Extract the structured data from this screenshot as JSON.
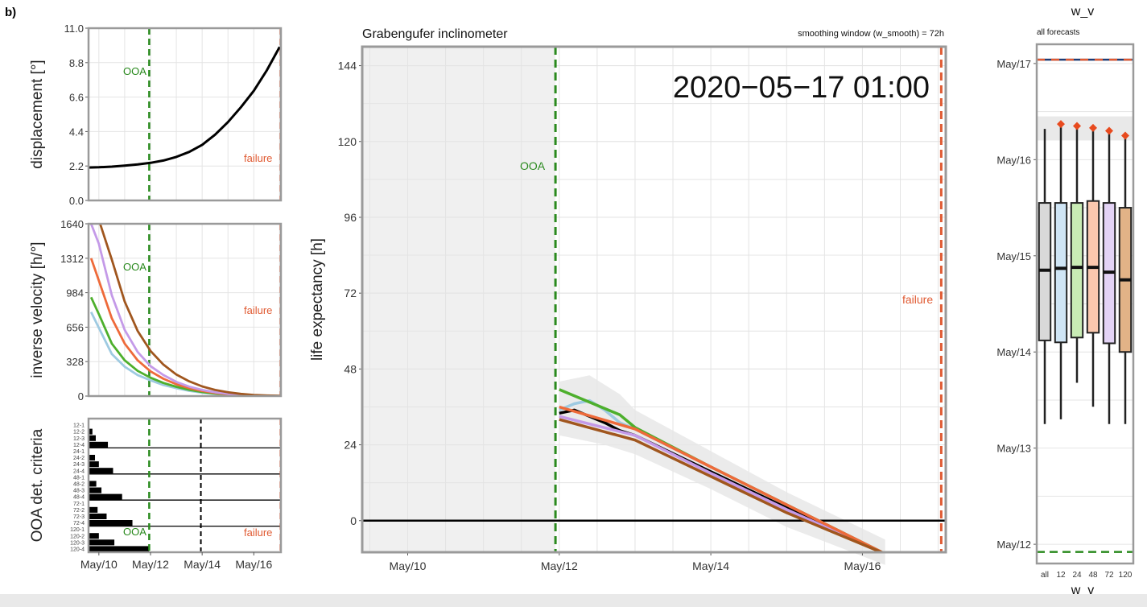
{
  "panel_label": "b)",
  "chart_data": [
    {
      "id": "displacement",
      "type": "line",
      "ylabel": "displacement [°]",
      "ylim": [
        0,
        11
      ],
      "yticks": [
        "0.0",
        "2.2",
        "4.4",
        "6.6",
        "8.8",
        "11.0"
      ],
      "x_unit": "day of May 2020",
      "xlim": [
        9.6,
        17.05
      ],
      "grid": true,
      "annotations": {
        "ooa": "OOA",
        "failure": "failure"
      },
      "vlines": {
        "ooa": 11.95,
        "failure": 17.04
      },
      "series": [
        {
          "color": "#000000",
          "x": [
            9.6,
            10.0,
            10.5,
            11.0,
            11.5,
            12.0,
            12.5,
            13.0,
            13.5,
            14.0,
            14.5,
            15.0,
            15.5,
            16.0,
            16.5,
            17.0
          ],
          "y": [
            2.1,
            2.12,
            2.16,
            2.22,
            2.3,
            2.4,
            2.55,
            2.78,
            3.1,
            3.55,
            4.2,
            5.0,
            5.95,
            7.0,
            8.3,
            9.8
          ]
        }
      ]
    },
    {
      "id": "inverse-velocity",
      "type": "line",
      "ylabel": "inverse velocity [h/°]",
      "ylim": [
        0,
        1640
      ],
      "yticks": [
        "0",
        "328",
        "656",
        "984",
        "1312",
        "1640"
      ],
      "xlim": [
        9.6,
        17.05
      ],
      "grid": true,
      "annotations": {
        "ooa": "OOA",
        "failure": "failure"
      },
      "vlines": {
        "ooa": 11.95,
        "failure": 17.04
      },
      "series": [
        {
          "color": "#9ecae1",
          "x": [
            9.7,
            10.0,
            10.5,
            11.0,
            11.5,
            12.0,
            12.5,
            13.0,
            13.5,
            14.0,
            14.5,
            15.0,
            15.5,
            16.0,
            16.5,
            17.0
          ],
          "y": [
            800,
            650,
            400,
            280,
            200,
            150,
            105,
            75,
            50,
            32,
            20,
            12,
            7,
            4,
            2,
            1
          ]
        },
        {
          "color": "#4daf2c",
          "x": [
            9.7,
            10.0,
            10.5,
            11.0,
            11.5,
            12.0,
            12.5,
            13.0,
            13.5,
            14.0,
            14.5,
            15.0,
            15.5,
            16.0,
            16.5,
            17.0
          ],
          "y": [
            940,
            780,
            500,
            340,
            240,
            175,
            125,
            88,
            60,
            38,
            24,
            14,
            8,
            4,
            2,
            1
          ]
        },
        {
          "color": "#ee6a3a",
          "x": [
            9.7,
            10.0,
            10.5,
            11.0,
            11.5,
            12.0,
            12.5,
            13.0,
            13.5,
            14.0,
            14.5,
            15.0,
            15.5,
            16.0,
            16.5,
            17.0
          ],
          "y": [
            1312,
            1100,
            740,
            500,
            340,
            235,
            165,
            112,
            75,
            48,
            30,
            18,
            10,
            5,
            2,
            1
          ]
        },
        {
          "color": "#c49ae8",
          "x": [
            9.7,
            10.0,
            10.5,
            11.0,
            11.5,
            12.0,
            12.5,
            13.0,
            13.5,
            14.0,
            14.5,
            15.0,
            15.5,
            16.0,
            16.5,
            17.0
          ],
          "y": [
            1640,
            1450,
            960,
            630,
            420,
            285,
            200,
            135,
            90,
            58,
            36,
            22,
            12,
            6,
            3,
            1
          ]
        },
        {
          "color": "#a0561e",
          "x": [
            10.05,
            10.5,
            11.0,
            11.5,
            12.0,
            12.5,
            13.0,
            13.5,
            14.0,
            14.5,
            15.0,
            15.5,
            16.0,
            16.5,
            17.0
          ],
          "y": [
            1640,
            1300,
            900,
            620,
            430,
            300,
            205,
            140,
            92,
            58,
            36,
            21,
            11,
            5,
            2
          ]
        }
      ]
    },
    {
      "id": "ooa-criteria",
      "type": "bar",
      "ylabel": "OOA det. criteria",
      "xlim": [
        9.6,
        17.05
      ],
      "xticks": [
        {
          "v": 10.0,
          "label": "May/10"
        },
        {
          "v": 12.0,
          "label": "May/12"
        },
        {
          "v": 14.0,
          "label": "May/14"
        },
        {
          "v": 16.0,
          "label": "May/16"
        }
      ],
      "row_labels": [
        "12-1",
        "12-2",
        "12-3",
        "12-4",
        "24-1",
        "24-2",
        "24-3",
        "24-4",
        "48-1",
        "48-2",
        "48-3",
        "48-4",
        "72-1",
        "72-2",
        "72-3",
        "72-4",
        "120-1",
        "120-2",
        "120-3",
        "120-4"
      ],
      "bar_ends": [
        0,
        9.75,
        9.88,
        10.35,
        0,
        9.85,
        10.0,
        10.55,
        0,
        9.9,
        10.1,
        10.9,
        0,
        9.95,
        10.3,
        11.3,
        0,
        10.0,
        10.6,
        11.95
      ],
      "bar_start": 9.6,
      "annotations": {
        "ooa": "OOA",
        "failure": "failure"
      },
      "vlines": {
        "ooa": 11.95,
        "mid": 13.95,
        "failure": 17.04
      }
    },
    {
      "id": "life-expectancy",
      "type": "line",
      "title": "Grabengufer inclinometer",
      "subtitle": "smoothing window (w_smooth) = 72h",
      "timestamp": "2020−05−17 01:00",
      "ylabel": "life expectancy [h]",
      "ylim": [
        -10,
        150
      ],
      "yticks": [
        0,
        24,
        48,
        72,
        96,
        120,
        144
      ],
      "xlim": [
        9.4,
        17.1
      ],
      "xticks": [
        {
          "v": 10.0,
          "label": "May/10"
        },
        {
          "v": 12.0,
          "label": "May/12"
        },
        {
          "v": 14.0,
          "label": "May/14"
        },
        {
          "v": 16.0,
          "label": "May/16"
        }
      ],
      "grid": true,
      "shaded_until": 11.95,
      "annotations": {
        "ooa": "OOA",
        "failure": "failure"
      },
      "vlines": {
        "ooa": 11.95,
        "failure": 17.04
      },
      "series": [
        {
          "color": "#9ecae1",
          "x": [
            12.0,
            12.2,
            12.4,
            12.6,
            12.8,
            13.0,
            14.0,
            15.0,
            16.3
          ],
          "y": [
            35,
            37,
            38,
            35,
            31,
            29,
            17,
            5,
            -10.5
          ]
        },
        {
          "color": "#4daf2c",
          "x": [
            12.0,
            12.4,
            12.8,
            13.0,
            14.0,
            15.0,
            16.3
          ],
          "y": [
            41.5,
            37.5,
            33.5,
            29.5,
            17,
            5,
            -10.5
          ]
        },
        {
          "color": "#000000",
          "x": [
            12.0,
            12.2,
            12.4,
            12.6,
            12.8,
            13.0,
            14.0,
            15.0,
            16.3
          ],
          "y": [
            34,
            35,
            33,
            31,
            28.5,
            27,
            15.5,
            4,
            -10.5
          ]
        },
        {
          "color": "#c49ae8",
          "x": [
            12.0,
            13.0,
            14.0,
            15.0,
            16.3
          ],
          "y": [
            33,
            27,
            15,
            3.5,
            -10.5
          ]
        },
        {
          "color": "#ee6a3a",
          "x": [
            12.0,
            13.0,
            14.0,
            15.0,
            16.3
          ],
          "y": [
            36,
            29,
            17,
            5,
            -10.5
          ]
        },
        {
          "color": "#a0561e",
          "x": [
            12.0,
            13.0,
            14.0,
            15.0,
            16.3
          ],
          "y": [
            32,
            25.5,
            14,
            2.5,
            -10.5
          ]
        }
      ]
    },
    {
      "id": "forecast-boxplot",
      "type": "boxplot",
      "title": "w_v",
      "subtitle": "all forecasts",
      "xlabel": "w_v",
      "ylim": [
        11.8,
        17.2
      ],
      "yticks": [
        {
          "v": 12,
          "label": "May/12"
        },
        {
          "v": 13,
          "label": "May/13"
        },
        {
          "v": 14,
          "label": "May/14"
        },
        {
          "v": 15,
          "label": "May/15"
        },
        {
          "v": 16,
          "label": "May/16"
        },
        {
          "v": 17,
          "label": "May/17"
        }
      ],
      "failure_line": 17.04,
      "ooa_line": 11.92,
      "categories": [
        "all",
        "12",
        "24",
        "48",
        "72",
        "120"
      ],
      "colors": [
        "#d9d9d9",
        "#cfe5f5",
        "#c9ecb5",
        "#fbc8ae",
        "#e3d3f5",
        "#e2b387"
      ],
      "boxes": [
        {
          "min": 13.25,
          "q1": 14.12,
          "median": 14.85,
          "q3": 15.55,
          "max": 16.32,
          "outlier": null
        },
        {
          "min": 13.3,
          "q1": 14.1,
          "median": 14.87,
          "q3": 15.55,
          "max": 16.35,
          "outlier": 16.37
        },
        {
          "min": 13.68,
          "q1": 14.15,
          "median": 14.88,
          "q3": 15.55,
          "max": 16.33,
          "outlier": 16.35
        },
        {
          "min": 13.43,
          "q1": 14.2,
          "median": 14.88,
          "q3": 15.57,
          "max": 16.3,
          "outlier": 16.33
        },
        {
          "min": 13.25,
          "q1": 14.09,
          "median": 14.83,
          "q3": 15.55,
          "max": 16.28,
          "outlier": 16.3
        },
        {
          "min": 13.25,
          "q1": 14.0,
          "median": 14.75,
          "q3": 15.5,
          "max": 16.23,
          "outlier": 16.25
        }
      ]
    }
  ]
}
